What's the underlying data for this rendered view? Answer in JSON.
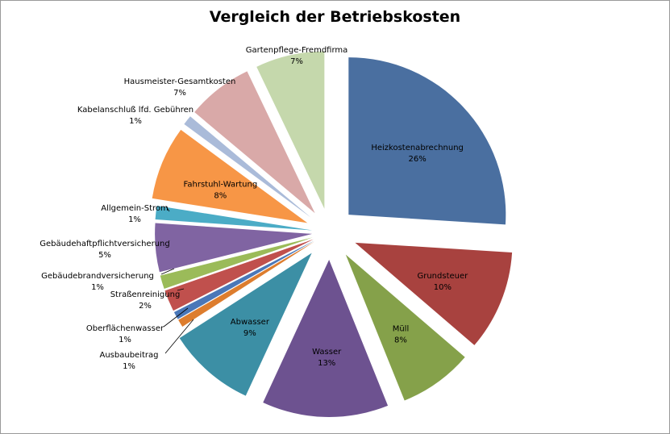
{
  "chart_data": {
    "type": "pie",
    "title": "Vergleich der Betriebskosten",
    "exploded": true,
    "start_angle_deg": 0,
    "direction": "clockwise",
    "slices": [
      {
        "label": "Heizkostenabrechnung",
        "pct_label": "26%",
        "value": 26.0,
        "color": "#4a6fa0",
        "label_inside": true
      },
      {
        "label": "Grundsteuer",
        "pct_label": "10%",
        "value": 10.3,
        "color": "#a8423f",
        "label_inside": true
      },
      {
        "label": "Müll",
        "pct_label": "8%",
        "value": 7.6,
        "color": "#85a14a",
        "label_inside": true
      },
      {
        "label": "Wasser",
        "pct_label": "13%",
        "value": 13.0,
        "color": "#6d5290",
        "label_inside": true
      },
      {
        "label": "Abwasser",
        "pct_label": "9%",
        "value": 9.0,
        "color": "#3c8fa5",
        "label_inside": true
      },
      {
        "label": "Ausbaubeitrag",
        "pct_label": "1%",
        "value": 0.8,
        "color": "#dd7d2e",
        "label_inside": false
      },
      {
        "label": "Oberflächenwasser",
        "pct_label": "1%",
        "value": 0.8,
        "color": "#4a77b8",
        "label_inside": false
      },
      {
        "label": "Straßenreinigung",
        "pct_label": "2%",
        "value": 2.2,
        "color": "#c0504d",
        "label_inside": false
      },
      {
        "label": "Gebäudebrandversicherung",
        "pct_label": "1%",
        "value": 1.4,
        "color": "#9bbb59",
        "label_inside": false
      },
      {
        "label": "Gebäudehaftpflichtversicherung",
        "pct_label": "5%",
        "value": 5.0,
        "color": "#8064a2",
        "label_inside": false
      },
      {
        "label": "Allgemein-Strom",
        "pct_label": "1%",
        "value": 1.4,
        "color": "#4bacc6",
        "label_inside": false
      },
      {
        "label": "Fahrstuhl-Wartung",
        "pct_label": "8%",
        "value": 7.6,
        "color": "#f79646",
        "label_inside": true
      },
      {
        "label": "Kabelanschluß lfd. Gebühren",
        "pct_label": "1%",
        "value": 1.0,
        "color": "#aabbd9",
        "label_inside": false
      },
      {
        "label": "Hausmeister-Gesamtkosten",
        "pct_label": "7%",
        "value": 6.8,
        "color": "#d9a9a8",
        "label_inside": false
      },
      {
        "label": "Gartenpflege-Fremdfirma",
        "pct_label": "7%",
        "value": 7.1,
        "color": "#c5d8ac",
        "label_inside": false
      }
    ]
  }
}
